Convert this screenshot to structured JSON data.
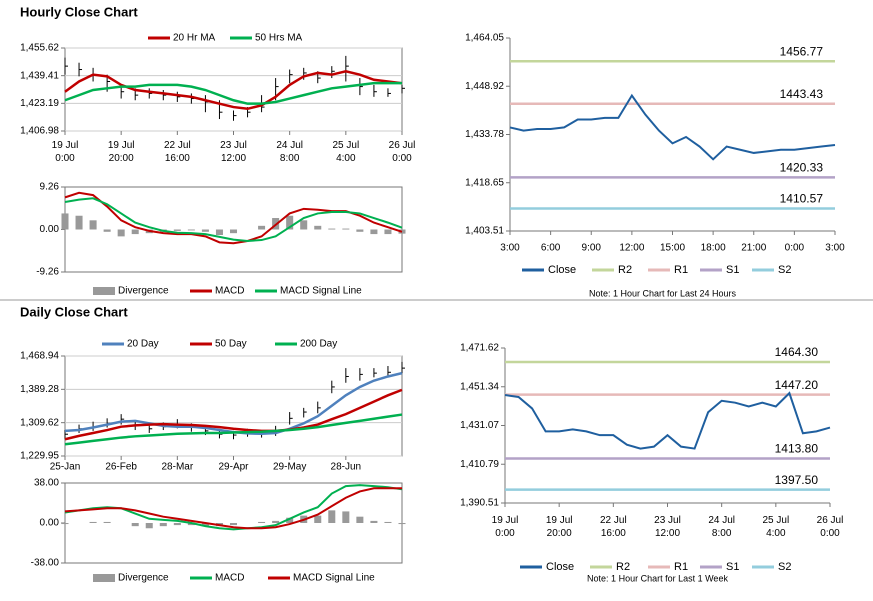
{
  "section_titles": [
    "Hourly Close Chart",
    "Daily Close Chart"
  ],
  "chart_data": [
    {
      "type": "ohlc",
      "ylim": [
        1406.98,
        1455.62
      ],
      "yticks": [
        {
          "value": 1406.98,
          "label": "1,406.98"
        },
        {
          "value": 1423.19,
          "label": "1,423.19"
        },
        {
          "value": 1439.41,
          "label": "1,439.41"
        },
        {
          "value": 1455.62,
          "label": "1,455.62"
        }
      ],
      "xlim": [
        0,
        24
      ],
      "xticks": [
        {
          "value": 0,
          "label": "19 Jul\n0:00"
        },
        {
          "value": 4,
          "label": "19 Jul\n20:00"
        },
        {
          "value": 8,
          "label": "22 Jul\n16:00"
        },
        {
          "value": 12,
          "label": "23 Jul\n12:00"
        },
        {
          "value": 16,
          "label": "24 Jul\n8:00"
        },
        {
          "value": 20,
          "label": "25 Jul\n4:00"
        },
        {
          "value": 24,
          "label": "26 Jul\n0:00"
        }
      ],
      "grid": true,
      "series": [
        {
          "color": "#000000",
          "values": [
            1445,
            1443,
            1440,
            1436,
            1430,
            1428,
            1429,
            1428,
            1427,
            1426,
            1424,
            1418,
            1416,
            1418,
            1421,
            1433,
            1440,
            1441,
            1438,
            1442,
            1445,
            1433,
            1430,
            1429,
            1432
          ],
          "high": [
            1450,
            1447,
            1444,
            1440,
            1434,
            1432,
            1432,
            1431,
            1430,
            1429,
            1428,
            1425,
            1419,
            1421,
            1428,
            1438,
            1443,
            1444,
            1442,
            1445,
            1451,
            1438,
            1434,
            1432,
            1434
          ],
          "low": [
            1440,
            1439,
            1436,
            1430,
            1426,
            1425,
            1426,
            1425,
            1424,
            1423,
            1418,
            1414,
            1413,
            1415,
            1418,
            1425,
            1435,
            1437,
            1435,
            1438,
            1436,
            1428,
            1427,
            1427,
            1429
          ]
        },
        {
          "name": "20 Hr MA",
          "color": "#c00000",
          "values": [
            1430,
            1436,
            1440,
            1439,
            1434,
            1431,
            1430,
            1429,
            1428,
            1427,
            1425,
            1423,
            1421,
            1420,
            1422,
            1427,
            1434,
            1439,
            1441,
            1440,
            1442,
            1440,
            1437,
            1436,
            1435
          ]
        },
        {
          "name": "50 Hrs MA",
          "color": "#00b050",
          "values": [
            1425,
            1428,
            1431,
            1432,
            1433,
            1433,
            1434,
            1434,
            1434,
            1433,
            1431,
            1428,
            1425,
            1423,
            1423,
            1424,
            1426,
            1428,
            1430,
            1432,
            1433,
            1434,
            1435,
            1435,
            1435
          ]
        }
      ]
    },
    {
      "type": "macd",
      "ylim": [
        -9.26,
        9.26
      ],
      "yticks": [
        -9.26,
        {
          "value": 0,
          "label": "0.00"
        },
        9.26
      ],
      "xlim": [
        0,
        24
      ],
      "series": [
        {
          "name": "Divergence",
          "color": "#999999",
          "style": "bar",
          "values": [
            3.5,
            3,
            2,
            -0.5,
            -1.5,
            -1,
            -0.8,
            -0.5,
            -0.3,
            -0.2,
            -0.5,
            -1.2,
            -0.8,
            0,
            0.8,
            2.5,
            3,
            2,
            0.8,
            0.2,
            0.2,
            -0.5,
            -1,
            -1,
            -0.9
          ]
        },
        {
          "name": "MACD",
          "color": "#c00000",
          "style": "line",
          "values": [
            7,
            8,
            7.5,
            5,
            2,
            0.5,
            -0.3,
            -0.8,
            -1,
            -1,
            -1.5,
            -2.8,
            -3,
            -2.5,
            -1.5,
            1,
            3.5,
            4.5,
            4.3,
            4,
            4,
            3,
            1.5,
            0.5,
            -0.5
          ]
        },
        {
          "name": "MACD Signal Line",
          "color": "#00b050",
          "style": "line",
          "values": [
            6,
            6.5,
            6.8,
            5.5,
            3.5,
            1.5,
            0.5,
            -0.3,
            -0.7,
            -0.8,
            -1,
            -1.6,
            -2.2,
            -2.5,
            -2.3,
            -1.5,
            0.5,
            2.5,
            3.5,
            3.8,
            3.8,
            3.5,
            2.5,
            1.5,
            0.4
          ]
        }
      ]
    },
    {
      "type": "pivot",
      "ylim": [
        1403.51,
        1464.05
      ],
      "yticks": [
        {
          "value": 1403.51,
          "label": "1,403.51"
        },
        {
          "value": 1418.65,
          "label": "1,418.65"
        },
        {
          "value": 1433.78,
          "label": "1,433.78"
        },
        {
          "value": 1448.92,
          "label": "1,448.92"
        },
        {
          "value": 1464.05,
          "label": "1,464.05"
        }
      ],
      "xlim": [
        0,
        24
      ],
      "xticks": [
        {
          "value": 0,
          "label": "3:00"
        },
        {
          "value": 3,
          "label": "6:00"
        },
        {
          "value": 6,
          "label": "9:00"
        },
        {
          "value": 9,
          "label": "12:00"
        },
        {
          "value": 12,
          "label": "15:00"
        },
        {
          "value": 15,
          "label": "18:00"
        },
        {
          "value": 18,
          "label": "21:00"
        },
        {
          "value": 21,
          "label": "0:00"
        },
        {
          "value": 24,
          "label": "3:00"
        }
      ],
      "series": [
        {
          "name": "Close",
          "color": "#1f5f9f",
          "values": [
            1436,
            1435,
            1435.5,
            1435.5,
            1436,
            1438.5,
            1438.5,
            1439,
            1439,
            1446,
            1440,
            1435,
            1431,
            1433,
            1430,
            1426,
            1430,
            1429,
            1428,
            1428.5,
            1429,
            1429,
            1429.5,
            1430,
            1430.5
          ]
        }
      ],
      "levels": [
        {
          "name": "R2",
          "value": 1456.77,
          "color": "#c3d69b"
        },
        {
          "name": "R1",
          "value": 1443.43,
          "color": "#e6b9b8"
        },
        {
          "name": "S1",
          "value": 1420.33,
          "color": "#b3a2c7"
        },
        {
          "name": "S2",
          "value": 1410.57,
          "color": "#93cddd"
        }
      ],
      "note": "Note: 1 Hour Chart for Last 24 Hours"
    },
    {
      "type": "ohlc",
      "ylim": [
        1229.95,
        1468.94
      ],
      "yticks": [
        {
          "value": 1229.95,
          "label": "1,229.95"
        },
        {
          "value": 1309.62,
          "label": "1,309.62"
        },
        {
          "value": 1389.28,
          "label": "1,389.28"
        },
        {
          "value": 1468.94,
          "label": "1,468.94"
        }
      ],
      "xlim": [
        0,
        24
      ],
      "xticks": [
        {
          "value": 0,
          "label": "25-Jan"
        },
        {
          "value": 4,
          "label": "26-Feb"
        },
        {
          "value": 8,
          "label": "28-Mar"
        },
        {
          "value": 12,
          "label": "29-Apr"
        },
        {
          "value": 16,
          "label": "29-May"
        },
        {
          "value": 20,
          "label": "28-Jun"
        }
      ],
      "grid": true,
      "series": [
        {
          "color": "#000000",
          "values": [
            1282,
            1295,
            1300,
            1308,
            1318,
            1302,
            1295,
            1300,
            1305,
            1298,
            1290,
            1282,
            1280,
            1285,
            1283,
            1290,
            1320,
            1335,
            1345,
            1395,
            1420,
            1425,
            1428,
            1430,
            1440
          ],
          "high": [
            1292,
            1305,
            1312,
            1320,
            1330,
            1312,
            1305,
            1310,
            1318,
            1308,
            1300,
            1292,
            1290,
            1295,
            1292,
            1302,
            1335,
            1345,
            1360,
            1410,
            1440,
            1440,
            1440,
            1445,
            1455
          ],
          "low": [
            1270,
            1285,
            1290,
            1298,
            1305,
            1292,
            1285,
            1292,
            1296,
            1288,
            1280,
            1272,
            1270,
            1276,
            1274,
            1278,
            1305,
            1322,
            1332,
            1380,
            1405,
            1410,
            1418,
            1418,
            1428
          ]
        },
        {
          "name": "20 Day",
          "color": "#4f81bd",
          "values": [
            1290,
            1292,
            1298,
            1305,
            1312,
            1314,
            1308,
            1302,
            1300,
            1300,
            1297,
            1292,
            1287,
            1284,
            1283,
            1285,
            1295,
            1308,
            1325,
            1350,
            1375,
            1395,
            1410,
            1420,
            1428
          ]
        },
        {
          "name": "50 Day",
          "color": "#c00000",
          "values": [
            1270,
            1278,
            1285,
            1292,
            1300,
            1303,
            1305,
            1306,
            1305,
            1304,
            1302,
            1299,
            1295,
            1292,
            1290,
            1290,
            1293,
            1298,
            1305,
            1318,
            1330,
            1345,
            1360,
            1375,
            1388
          ]
        },
        {
          "name": "200 Day",
          "color": "#00b050",
          "values": [
            1258,
            1262,
            1266,
            1270,
            1274,
            1277,
            1279,
            1281,
            1283,
            1284,
            1285,
            1285,
            1286,
            1287,
            1288,
            1290,
            1292,
            1295,
            1299,
            1304,
            1309,
            1314,
            1319,
            1324,
            1329
          ]
        }
      ]
    },
    {
      "type": "macd",
      "ylim": [
        -38,
        38
      ],
      "yticks": [
        {
          "value": -38,
          "label": "-38.00"
        },
        {
          "value": 0,
          "label": "0.00"
        },
        {
          "value": 38,
          "label": "38.00"
        }
      ],
      "xlim": [
        0,
        24
      ],
      "series": [
        {
          "name": "Divergence",
          "color": "#999999",
          "style": "bar",
          "values": [
            -1,
            0,
            1,
            1,
            0,
            -3,
            -5,
            -3,
            -2,
            -2,
            -3,
            -3,
            -2,
            0,
            1,
            2,
            5,
            7,
            7,
            12,
            11,
            6,
            2,
            1,
            -1
          ]
        },
        {
          "name": "MACD",
          "color": "#00b050",
          "style": "line",
          "values": [
            10,
            12,
            14,
            15,
            14,
            9,
            4,
            3,
            2,
            0,
            -3,
            -5,
            -6,
            -5,
            -4,
            -2,
            4,
            10,
            15,
            28,
            35,
            36,
            35,
            34,
            32
          ]
        },
        {
          "name": "MACD Signal Line",
          "color": "#c00000",
          "style": "line",
          "values": [
            11,
            12,
            13,
            14,
            14,
            12,
            9,
            6,
            4,
            2,
            0,
            -2,
            -4,
            -5,
            -5,
            -4,
            -1,
            3,
            8,
            16,
            24,
            30,
            33,
            33,
            33
          ]
        }
      ]
    },
    {
      "type": "pivot",
      "ylim": [
        1390.51,
        1471.62
      ],
      "yticks": [
        {
          "value": 1390.51,
          "label": "1,390.51"
        },
        {
          "value": 1410.79,
          "label": "1,410.79"
        },
        {
          "value": 1431.07,
          "label": "1,431.07"
        },
        {
          "value": 1451.34,
          "label": "1,451.34"
        },
        {
          "value": 1471.62,
          "label": "1,471.62"
        }
      ],
      "xlim": [
        0,
        24
      ],
      "xticks": [
        {
          "value": 0,
          "label": "19 Jul\n0:00"
        },
        {
          "value": 4,
          "label": "19 Jul\n20:00"
        },
        {
          "value": 8,
          "label": "22 Jul\n16:00"
        },
        {
          "value": 12,
          "label": "23 Jul\n12:00"
        },
        {
          "value": 16,
          "label": "24 Jul\n8:00"
        },
        {
          "value": 20,
          "label": "25 Jul\n4:00"
        },
        {
          "value": 24,
          "label": "26 Jul\n0:00"
        }
      ],
      "series": [
        {
          "name": "Close",
          "color": "#1f5f9f",
          "values": [
            1447,
            1446,
            1440,
            1428,
            1428,
            1429,
            1428,
            1426,
            1426,
            1421,
            1419,
            1420,
            1426,
            1420,
            1419,
            1438,
            1444,
            1443,
            1441,
            1443,
            1441,
            1448,
            1427,
            1428,
            1430
          ]
        }
      ],
      "levels": [
        {
          "name": "R2",
          "value": 1464.3,
          "value_label": "1464.30",
          "color": "#c3d69b"
        },
        {
          "name": "R1",
          "value": 1447.2,
          "value_label": "1447.20",
          "color": "#e6b9b8"
        },
        {
          "name": "S1",
          "value": 1413.8,
          "value_label": "1413.80",
          "color": "#b3a2c7"
        },
        {
          "name": "S2",
          "value": 1397.5,
          "value_label": "1397.50",
          "color": "#93cddd"
        }
      ],
      "note": "Note: 1 Hour Chart for Last 1 Week"
    }
  ]
}
